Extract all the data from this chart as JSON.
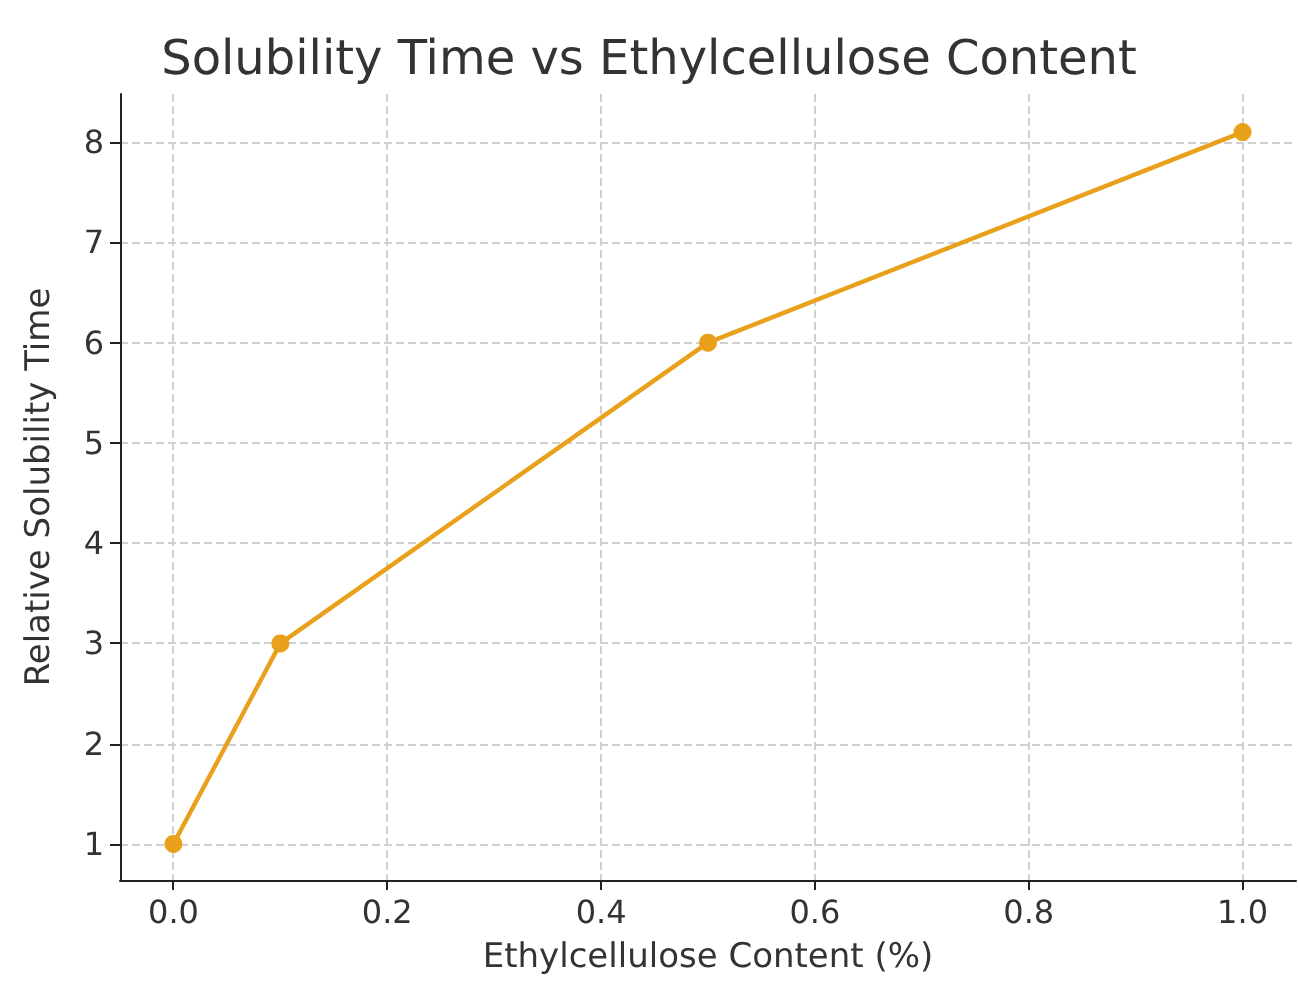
{
  "chart_data": {
    "type": "line",
    "title": "Solubility Time vs Ethylcellulose Content",
    "xlabel": "Ethylcellulose Content (%)",
    "ylabel": "Relative Solubility Time",
    "x": [
      0,
      0.1,
      0.5,
      1.0
    ],
    "series": [
      {
        "color": "#e9a11c",
        "values": [
          1,
          3,
          6,
          8.1
        ]
      }
    ],
    "xlim": [
      -0.05,
      1.05
    ],
    "xticks": [
      {
        "value": 0,
        "label": "0.0"
      },
      0.2,
      0.4,
      0.6,
      0.8,
      {
        "value": 1,
        "label": "1.0"
      }
    ],
    "ylim": [
      0.64,
      8.48
    ],
    "yticks": [
      1,
      2,
      3,
      4,
      5,
      6,
      7,
      8
    ],
    "grid": true,
    "marker": "circle",
    "line_style": "solid"
  }
}
